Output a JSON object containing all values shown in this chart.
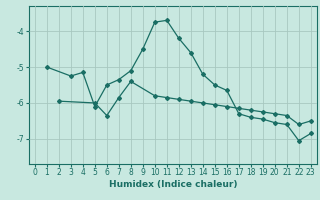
{
  "title": "",
  "xlabel": "Humidex (Indice chaleur)",
  "xlim": [
    -0.5,
    23.5
  ],
  "ylim": [
    -7.7,
    -3.3
  ],
  "background_color": "#c8e8e0",
  "grid_color": "#a8c8c0",
  "line_color": "#1a6e64",
  "curve1_x": [
    1,
    3,
    4,
    5,
    6,
    7,
    8,
    9,
    10,
    11,
    12,
    13,
    14,
    15,
    16,
    17,
    18,
    19,
    20,
    21,
    22,
    23
  ],
  "curve1_y": [
    -5.0,
    -5.25,
    -5.15,
    -6.1,
    -5.5,
    -5.35,
    -5.1,
    -4.5,
    -3.75,
    -3.7,
    -4.2,
    -4.6,
    -5.2,
    -5.5,
    -5.65,
    -6.3,
    -6.4,
    -6.45,
    -6.55,
    -6.6,
    -7.05,
    -6.85
  ],
  "curve2_x": [
    2,
    5,
    6,
    7,
    8,
    10,
    11,
    12,
    13,
    14,
    15,
    16,
    17,
    18,
    19,
    20,
    21,
    22,
    23
  ],
  "curve2_y": [
    -5.95,
    -6.0,
    -6.35,
    -5.85,
    -5.4,
    -5.8,
    -5.85,
    -5.9,
    -5.95,
    -6.0,
    -6.05,
    -6.1,
    -6.15,
    -6.2,
    -6.25,
    -6.3,
    -6.35,
    -6.6,
    -6.5
  ],
  "yticks": [
    -7,
    -6,
    -5,
    -4
  ],
  "xticks": [
    0,
    1,
    2,
    3,
    4,
    5,
    6,
    7,
    8,
    9,
    10,
    11,
    12,
    13,
    14,
    15,
    16,
    17,
    18,
    19,
    20,
    21,
    22,
    23
  ],
  "marker": "D",
  "markersize": 2.0,
  "linewidth": 0.9,
  "label_fontsize": 6.5,
  "tick_fontsize": 5.5
}
